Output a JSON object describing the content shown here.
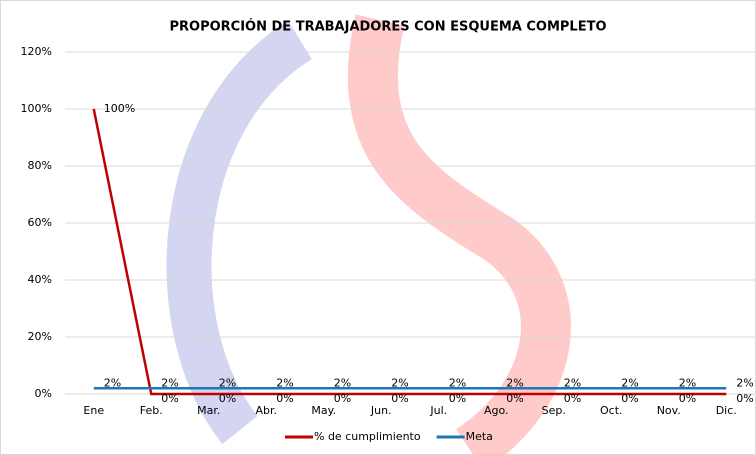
{
  "chart_data": {
    "type": "line",
    "title": "PROPORCIÓN DE TRABAJADORES CON ESQUEMA COMPLETO",
    "categories": [
      "Ene",
      "Feb.",
      "Mar.",
      "Abr.",
      "May.",
      "Jun.",
      "Jul.",
      "Ago.",
      "Sep.",
      "Oct.",
      "Nov.",
      "Dic."
    ],
    "series": [
      {
        "name": "% de cumplimiento",
        "color": "#c00000",
        "values": [
          100,
          0,
          0,
          0,
          0,
          0,
          0,
          0,
          0,
          0,
          0,
          0
        ],
        "value_labels": [
          "100%",
          "0%",
          "0%",
          "0%",
          "0%",
          "0%",
          "0%",
          "0%",
          "0%",
          "0%",
          "0%",
          "0%"
        ]
      },
      {
        "name": "Meta",
        "color": "#1f77b4",
        "values": [
          2,
          2,
          2,
          2,
          2,
          2,
          2,
          2,
          2,
          2,
          2,
          2
        ],
        "value_labels": [
          "2%",
          "2%",
          "2%",
          "2%",
          "2%",
          "2%",
          "2%",
          "2%",
          "2%",
          "2%",
          "2%",
          "2%"
        ]
      }
    ],
    "ylim": [
      0,
      120
    ],
    "yticks": [
      {
        "value": 0,
        "label": "0%"
      },
      {
        "value": 20,
        "label": "20%"
      },
      {
        "value": 40,
        "label": "40%"
      },
      {
        "value": 60,
        "label": "60%"
      },
      {
        "value": 80,
        "label": "80%"
      },
      {
        "value": 100,
        "label": "100%"
      },
      {
        "value": 120,
        "label": "120%"
      }
    ],
    "grid": true,
    "legend": "bottom"
  }
}
